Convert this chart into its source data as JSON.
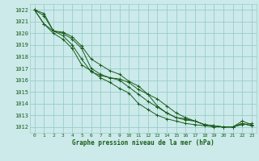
{
  "title": "Graphe pression niveau de la mer (hPa)",
  "bg_color": "#cceaea",
  "grid_color": "#99cccc",
  "line_color": "#1a5c1a",
  "xlim": [
    -0.5,
    23.5
  ],
  "ylim": [
    1011.5,
    1022.5
  ],
  "xticks": [
    0,
    1,
    2,
    3,
    4,
    5,
    6,
    7,
    8,
    9,
    10,
    11,
    12,
    13,
    14,
    15,
    16,
    17,
    18,
    19,
    20,
    21,
    22,
    23
  ],
  "yticks": [
    1012,
    1013,
    1014,
    1015,
    1016,
    1017,
    1018,
    1019,
    1020,
    1021,
    1022
  ],
  "lines": [
    [
      1022.0,
      1021.7,
      1020.2,
      1020.1,
      1019.7,
      1018.9,
      1017.8,
      1017.3,
      1016.8,
      1016.5,
      1015.9,
      1015.5,
      1014.8,
      1014.4,
      1013.8,
      1013.2,
      1012.8,
      1012.5,
      1012.2,
      1012.1,
      1012.0,
      1012.0,
      1012.5,
      1012.2
    ],
    [
      1022.0,
      1021.5,
      1020.2,
      1020.0,
      1019.5,
      1018.7,
      1017.0,
      1016.5,
      1016.2,
      1016.1,
      1015.8,
      1015.2,
      1014.8,
      1013.8,
      1013.2,
      1012.8,
      1012.7,
      1012.5,
      1012.2,
      1012.1,
      1012.0,
      1012.0,
      1012.2,
      1012.3
    ],
    [
      1022.0,
      1020.8,
      1020.2,
      1019.8,
      1019.0,
      1017.8,
      1016.7,
      1016.4,
      1016.2,
      1016.0,
      1015.4,
      1014.8,
      1014.2,
      1013.7,
      1013.2,
      1012.8,
      1012.6,
      1012.5,
      1012.2,
      1012.1,
      1012.0,
      1012.0,
      1012.3,
      1012.1
    ],
    [
      1022.0,
      1020.8,
      1020.0,
      1019.5,
      1018.7,
      1017.3,
      1016.8,
      1016.2,
      1015.8,
      1015.3,
      1014.9,
      1014.0,
      1013.5,
      1013.0,
      1012.7,
      1012.5,
      1012.3,
      1012.2,
      1012.1,
      1012.0,
      1012.0,
      1012.0,
      1012.3,
      1012.1
    ]
  ]
}
